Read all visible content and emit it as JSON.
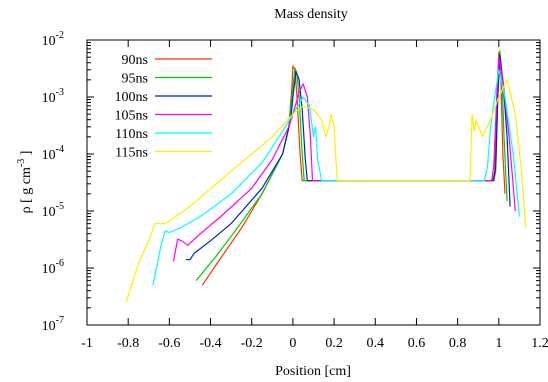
{
  "chart_data": {
    "type": "line",
    "title": "Mass density",
    "xlabel": "Position [cm]",
    "ylabel_parts": {
      "rho": "ρ",
      "open": " [ g cm",
      "exp": "-3",
      "close": " ]"
    },
    "xlim": [
      -1,
      1.2
    ],
    "ylim_log10": [
      -7,
      -2
    ],
    "yscale": "log",
    "grid": false,
    "legend_position": "top-left",
    "x_ticks": [
      -1,
      -0.8,
      -0.6,
      -0.4,
      -0.2,
      0,
      0.2,
      0.4,
      0.6,
      0.8,
      1,
      1.2
    ],
    "x_tick_labels": [
      "-1",
      "-0.8",
      "-0.6",
      "-0.4",
      "-0.2",
      "0",
      "0.2",
      "0.4",
      "0.6",
      "0.8",
      "1",
      "1.2"
    ],
    "y_ticks_exp": [
      -7,
      -6,
      -5,
      -4,
      -3,
      -2
    ],
    "y_tick_base": "10",
    "y_tick_exps": [
      "-7",
      "-6",
      "-5",
      "-4",
      "-3",
      "-2"
    ],
    "series": [
      {
        "name": "90ns",
        "color": "#ff3300",
        "points": [
          [
            -0.44,
            5e-07
          ],
          [
            -0.35,
            1.5e-06
          ],
          [
            -0.25,
            5e-06
          ],
          [
            -0.15,
            2e-05
          ],
          [
            -0.05,
            0.0001
          ],
          [
            -0.02,
            0.0003
          ],
          [
            -0.005,
            0.0015
          ],
          [
            0.0,
            0.0035
          ],
          [
            0.01,
            0.003
          ],
          [
            0.02,
            0.001
          ],
          [
            0.035,
            0.0001
          ],
          [
            0.045,
            3.4e-05
          ],
          [
            0.97,
            3.4e-05
          ],
          [
            0.98,
            5e-05
          ],
          [
            0.99,
            0.001
          ],
          [
            1.0,
            0.006
          ],
          [
            1.01,
            0.002
          ],
          [
            1.02,
            0.0001
          ],
          [
            1.03,
            2e-05
          ]
        ]
      },
      {
        "name": "95ns",
        "color": "#00cc00",
        "points": [
          [
            -0.47,
            6e-07
          ],
          [
            -0.38,
            1.5e-06
          ],
          [
            -0.28,
            4.5e-06
          ],
          [
            -0.15,
            2e-05
          ],
          [
            -0.05,
            0.0001
          ],
          [
            -0.02,
            0.0003
          ],
          [
            0.0,
            0.0015
          ],
          [
            0.01,
            0.0032
          ],
          [
            0.02,
            0.0025
          ],
          [
            0.03,
            0.001
          ],
          [
            0.045,
            0.0001
          ],
          [
            0.055,
            3.4e-05
          ],
          [
            0.975,
            3.4e-05
          ],
          [
            0.985,
            5e-05
          ],
          [
            0.995,
            0.001
          ],
          [
            1.005,
            0.0065
          ],
          [
            1.015,
            0.0025
          ],
          [
            1.025,
            0.0002
          ],
          [
            1.04,
            1.5e-05
          ]
        ]
      },
      {
        "name": "100ns",
        "color": "#0022cc",
        "points": [
          [
            -0.52,
            1.4e-06
          ],
          [
            -0.5,
            1.4e-06
          ],
          [
            -0.48,
            1.8e-06
          ],
          [
            -0.4,
            3e-06
          ],
          [
            -0.3,
            6e-06
          ],
          [
            -0.15,
            2.5e-05
          ],
          [
            -0.05,
            0.0001
          ],
          [
            -0.01,
            0.0004
          ],
          [
            0.0,
            0.001
          ],
          [
            0.015,
            0.0028
          ],
          [
            0.03,
            0.002
          ],
          [
            0.045,
            0.0006
          ],
          [
            0.06,
            8e-05
          ],
          [
            0.07,
            3.4e-05
          ],
          [
            0.975,
            3.4e-05
          ],
          [
            0.985,
            6e-05
          ],
          [
            0.995,
            0.001
          ],
          [
            1.005,
            0.0055
          ],
          [
            1.02,
            0.002
          ],
          [
            1.04,
            0.0002
          ],
          [
            1.055,
            1.2e-05
          ]
        ]
      },
      {
        "name": "105ns",
        "color": "#ff00ff",
        "points": [
          [
            -0.58,
            1.3e-06
          ],
          [
            -0.56,
            3.2e-06
          ],
          [
            -0.54,
            3e-06
          ],
          [
            -0.51,
            2.5e-06
          ],
          [
            -0.45,
            4e-06
          ],
          [
            -0.35,
            8e-06
          ],
          [
            -0.2,
            2.5e-05
          ],
          [
            -0.1,
            8e-05
          ],
          [
            -0.02,
            0.0003
          ],
          [
            0.0,
            0.0005
          ],
          [
            0.03,
            0.0012
          ],
          [
            0.05,
            0.0017
          ],
          [
            0.07,
            0.001
          ],
          [
            0.085,
            0.0002
          ],
          [
            0.095,
            3.4e-05
          ],
          [
            0.965,
            3.4e-05
          ],
          [
            0.975,
            6e-05
          ],
          [
            0.99,
            0.001
          ],
          [
            1.0,
            0.005
          ],
          [
            1.02,
            0.002
          ],
          [
            1.05,
            0.0002
          ],
          [
            1.08,
            1e-05
          ]
        ]
      },
      {
        "name": "110ns",
        "color": "#00ffff",
        "points": [
          [
            -0.68,
            5e-07
          ],
          [
            -0.64,
            2.5e-06
          ],
          [
            -0.62,
            4.5e-06
          ],
          [
            -0.6,
            4.2e-06
          ],
          [
            -0.55,
            5e-06
          ],
          [
            -0.45,
            8e-06
          ],
          [
            -0.3,
            2e-05
          ],
          [
            -0.15,
            7e-05
          ],
          [
            -0.05,
            0.00025
          ],
          [
            0.0,
            0.0005
          ],
          [
            0.05,
            0.001
          ],
          [
            0.08,
            0.0007
          ],
          [
            0.1,
            0.0002
          ],
          [
            0.11,
            0.0003
          ],
          [
            0.12,
            8e-05
          ],
          [
            0.14,
            3.4e-05
          ],
          [
            0.93,
            3.4e-05
          ],
          [
            0.945,
            6e-05
          ],
          [
            0.96,
            0.0003
          ],
          [
            0.98,
            0.001
          ],
          [
            1.0,
            0.003
          ],
          [
            1.03,
            0.001
          ],
          [
            1.07,
            0.0001
          ],
          [
            1.1,
            8e-06
          ]
        ]
      },
      {
        "name": "115ns",
        "color": "#ffee00",
        "points": [
          [
            -0.81,
            2.5e-07
          ],
          [
            -0.75,
            1.2e-06
          ],
          [
            -0.7,
            3e-06
          ],
          [
            -0.67,
            6e-06
          ],
          [
            -0.62,
            6e-06
          ],
          [
            -0.5,
            1.2e-05
          ],
          [
            -0.3,
            5e-05
          ],
          [
            -0.1,
            0.0002
          ],
          [
            0.0,
            0.0005
          ],
          [
            0.05,
            0.0007
          ],
          [
            0.1,
            0.0006
          ],
          [
            0.14,
            0.0004
          ],
          [
            0.16,
            0.0002
          ],
          [
            0.175,
            0.0003
          ],
          [
            0.185,
            0.0005
          ],
          [
            0.2,
            0.0003
          ],
          [
            0.215,
            3.4e-05
          ],
          [
            0.86,
            3.4e-05
          ],
          [
            0.87,
            0.0005
          ],
          [
            0.88,
            0.00025
          ],
          [
            0.89,
            0.0004
          ],
          [
            0.92,
            0.0002
          ],
          [
            0.96,
            0.0004
          ],
          [
            1.0,
            0.001
          ],
          [
            1.04,
            0.002
          ],
          [
            1.08,
            0.0005
          ],
          [
            1.11,
            5e-05
          ],
          [
            1.13,
            5e-06
          ]
        ]
      }
    ]
  }
}
